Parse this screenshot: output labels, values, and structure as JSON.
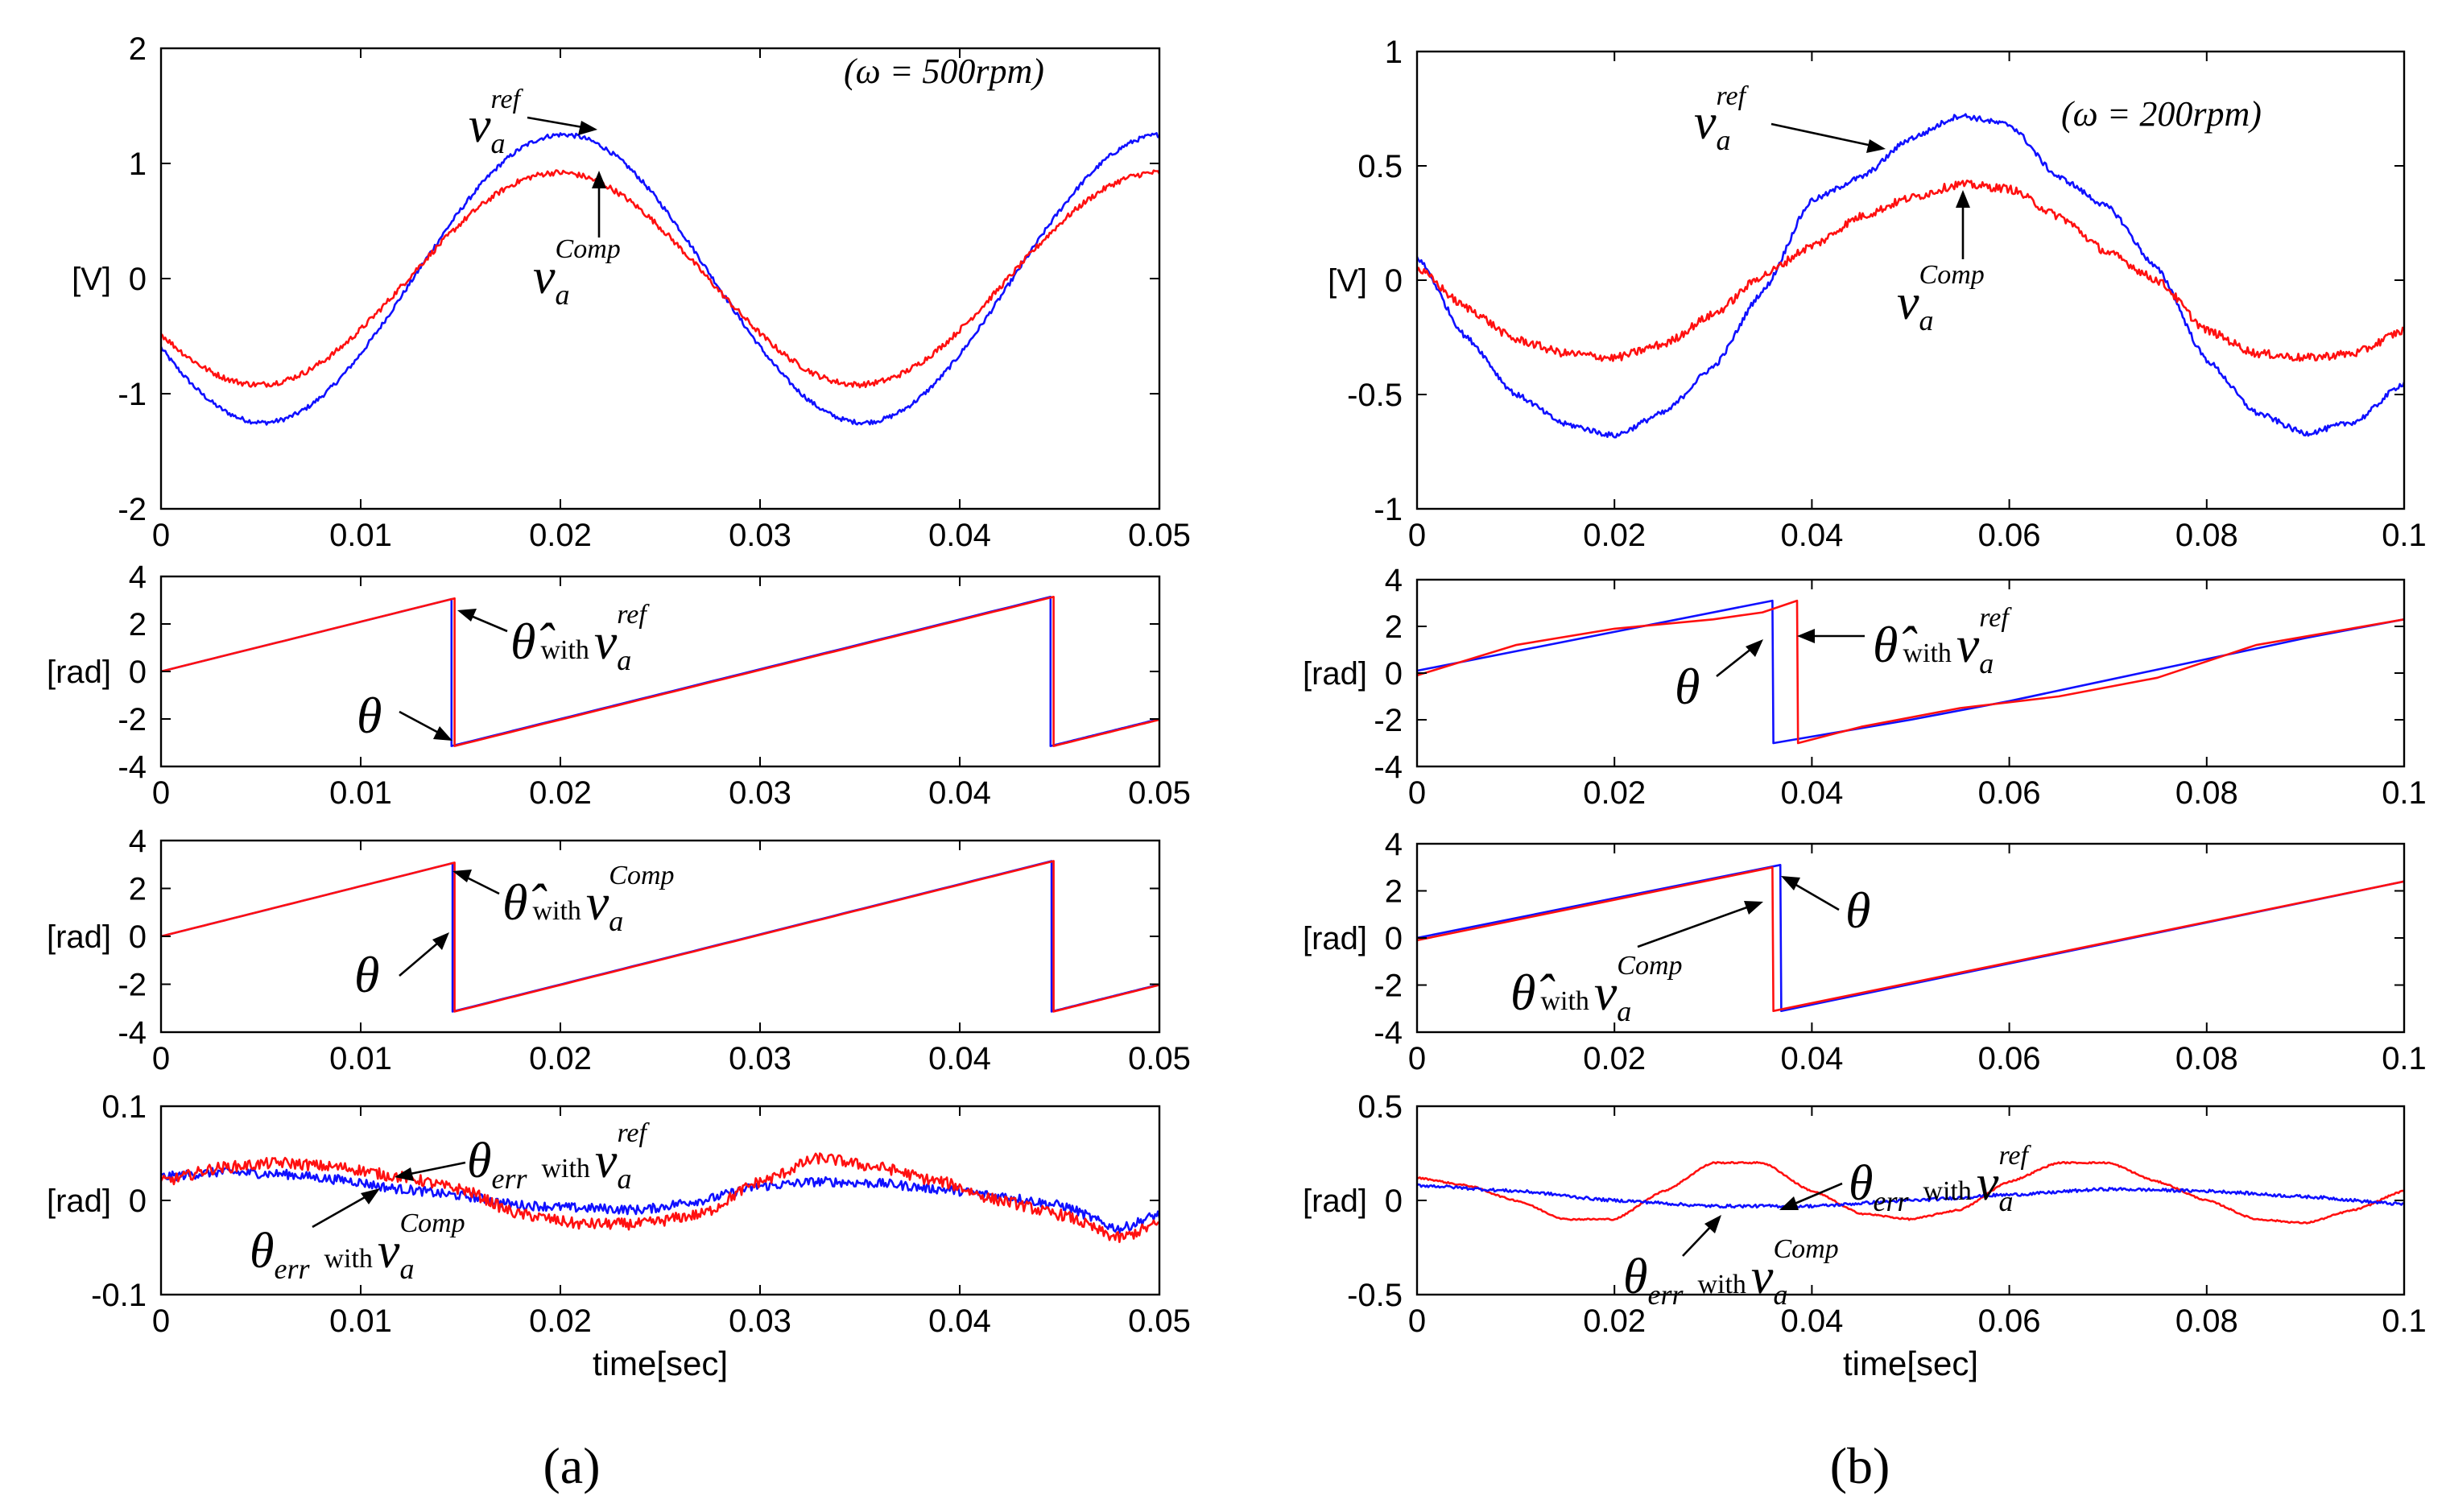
{
  "colors": {
    "reference": "#1010ff",
    "compensated": "#ff1010",
    "axis": "#000000"
  },
  "panel_labels": {
    "a": "(a)",
    "b": "(b)"
  },
  "chart_data": [
    {
      "id": "a1",
      "type": "line",
      "column": "a",
      "ylabel": "[V]",
      "xlabel": "",
      "xlim": [
        0,
        0.05
      ],
      "ylim": [
        -2,
        2
      ],
      "xticks": [
        "0",
        "0.01",
        "0.02",
        "0.03",
        "0.04",
        "0.05"
      ],
      "yticks": [
        "-2",
        "-1",
        "0",
        "1",
        "2"
      ],
      "annotation": "(ω = 500rpm)",
      "series": [
        {
          "name": "v_a^ref",
          "color": "#1010ff",
          "kind": "sine",
          "amp": 1.25,
          "freq": 33.3,
          "phase": 0.5,
          "offset": 0,
          "noise": 0.02
        },
        {
          "name": "v_a^Comp",
          "color": "#ff1010",
          "kind": "sine",
          "amp": 0.92,
          "freq": 33.3,
          "phase": 0.55,
          "offset": 0,
          "noise": 0.025
        }
      ],
      "labels": {
        "main": "v",
        "sub": "a",
        "sup_ref": "ref",
        "sup_comp": "Comp"
      }
    },
    {
      "id": "a2",
      "type": "line",
      "column": "a",
      "ylabel": "[rad]",
      "xlabel": "",
      "xlim": [
        0,
        0.05
      ],
      "ylim": [
        -4,
        4
      ],
      "xticks": [
        "0",
        "0.01",
        "0.02",
        "0.03",
        "0.04",
        "0.05"
      ],
      "yticks": [
        "-4",
        "-2",
        "0",
        "2",
        "4"
      ],
      "series": [
        {
          "name": "theta_hat with v_a^ref",
          "color": "#1010ff",
          "kind": "saw",
          "wraps": [
            0.01455,
            0.04455
          ],
          "slope": 209.4,
          "start": 0.0
        },
        {
          "name": "theta",
          "color": "#ff1010",
          "kind": "saw",
          "wraps": [
            0.0147,
            0.0447
          ],
          "slope": 209.4,
          "start": 0.0
        }
      ],
      "labels": {
        "theta_hat": "θ̂",
        "with": "with",
        "v": "v",
        "sub": "a",
        "sup": "ref",
        "theta": "θ"
      }
    },
    {
      "id": "a3",
      "type": "line",
      "column": "a",
      "ylabel": "[rad]",
      "xlabel": "",
      "xlim": [
        0,
        0.05
      ],
      "ylim": [
        -4,
        4
      ],
      "xticks": [
        "0",
        "0.01",
        "0.02",
        "0.03",
        "0.04",
        "0.05"
      ],
      "yticks": [
        "-4",
        "-2",
        "0",
        "2",
        "4"
      ],
      "series": [
        {
          "name": "theta_hat with v_a^Comp",
          "color": "#1010ff",
          "kind": "saw",
          "wraps": [
            0.0146,
            0.0446
          ],
          "slope": 209.4,
          "start": 0.0
        },
        {
          "name": "theta",
          "color": "#ff1010",
          "kind": "saw",
          "wraps": [
            0.0147,
            0.0447
          ],
          "slope": 209.4,
          "start": 0.0
        }
      ],
      "labels": {
        "theta_hat": "θ̂",
        "with": "with",
        "v": "v",
        "sub": "a",
        "sup": "Comp",
        "theta": "θ"
      }
    },
    {
      "id": "a4",
      "type": "line",
      "column": "a",
      "ylabel": "[rad]",
      "xlabel": "time[sec]",
      "xlim": [
        0,
        0.05
      ],
      "ylim": [
        -0.1,
        0.1
      ],
      "xticks": [
        "0",
        "0.01",
        "0.02",
        "0.03",
        "0.04",
        "0.05"
      ],
      "yticks": [
        "-0.1",
        "0",
        "0.1"
      ],
      "series": [
        {
          "name": "theta_err with v_a^Comp",
          "color": "#1010ff",
          "kind": "points",
          "noise": 0.005,
          "x": [
            0,
            0.003,
            0.006,
            0.009,
            0.012,
            0.015,
            0.018,
            0.021,
            0.024,
            0.027,
            0.03,
            0.033,
            0.036,
            0.039,
            0.042,
            0.045,
            0.048,
            0.05
          ],
          "y": [
            0.025,
            0.03,
            0.028,
            0.022,
            0.012,
            0.005,
            -0.005,
            -0.008,
            -0.01,
            0.0,
            0.015,
            0.02,
            0.018,
            0.012,
            0.005,
            -0.005,
            -0.03,
            -0.015
          ]
        },
        {
          "name": "theta_err with v_a^ref",
          "color": "#ff1010",
          "kind": "points",
          "noise": 0.006,
          "x": [
            0,
            0.003,
            0.006,
            0.009,
            0.012,
            0.015,
            0.018,
            0.021,
            0.024,
            0.027,
            0.03,
            0.033,
            0.036,
            0.039,
            0.042,
            0.045,
            0.048,
            0.05
          ],
          "y": [
            0.02,
            0.035,
            0.04,
            0.035,
            0.025,
            0.012,
            -0.015,
            -0.025,
            -0.025,
            -0.015,
            0.02,
            0.045,
            0.035,
            0.02,
            0.0,
            -0.015,
            -0.04,
            -0.025
          ]
        }
      ],
      "labels": {
        "theta": "θ",
        "err": "err",
        "with": "with",
        "v": "v",
        "sub": "a",
        "sup_ref": "ref",
        "sup_comp": "Comp"
      }
    },
    {
      "id": "b1",
      "type": "line",
      "column": "b",
      "ylabel": "[V]",
      "xlabel": "",
      "xlim": [
        0,
        0.1
      ],
      "ylim": [
        -1,
        1
      ],
      "xticks": [
        "0",
        "0.02",
        "0.04",
        "0.06",
        "0.08",
        "0.1"
      ],
      "yticks": [
        "-1",
        "-0.5",
        "0",
        "0.5",
        "1"
      ],
      "annotation": "(ω = 200rpm)",
      "series": [
        {
          "name": "v_a^ref",
          "color": "#1010ff",
          "kind": "points",
          "noise": 0.012,
          "x": [
            0,
            0.005,
            0.01,
            0.015,
            0.02,
            0.025,
            0.03,
            0.035,
            0.04,
            0.045,
            0.05,
            0.055,
            0.06,
            0.065,
            0.07,
            0.075,
            0.08,
            0.085,
            0.09,
            0.095,
            0.1
          ],
          "y": [
            0.1,
            -0.25,
            -0.5,
            -0.63,
            -0.68,
            -0.58,
            -0.38,
            -0.05,
            0.35,
            0.45,
            0.62,
            0.72,
            0.68,
            0.45,
            0.32,
            0.05,
            -0.35,
            -0.58,
            -0.67,
            -0.62,
            -0.45
          ]
        },
        {
          "name": "v_a^Comp",
          "color": "#ff1010",
          "kind": "points",
          "noise": 0.018,
          "x": [
            0,
            0.005,
            0.01,
            0.015,
            0.02,
            0.025,
            0.03,
            0.035,
            0.04,
            0.045,
            0.05,
            0.055,
            0.06,
            0.065,
            0.07,
            0.075,
            0.08,
            0.085,
            0.09,
            0.095,
            0.1
          ],
          "y": [
            0.05,
            -0.12,
            -0.26,
            -0.32,
            -0.34,
            -0.28,
            -0.15,
            0.02,
            0.15,
            0.28,
            0.36,
            0.42,
            0.4,
            0.28,
            0.12,
            0.0,
            -0.22,
            -0.32,
            -0.34,
            -0.32,
            -0.22
          ]
        }
      ],
      "labels": {
        "main": "v",
        "sub": "a",
        "sup_ref": "ref",
        "sup_comp": "Comp"
      }
    },
    {
      "id": "b2",
      "type": "line",
      "column": "b",
      "ylabel": "[rad]",
      "xlabel": "",
      "xlim": [
        0,
        0.1
      ],
      "ylim": [
        -4,
        4
      ],
      "xticks": [
        "0",
        "0.02",
        "0.04",
        "0.06",
        "0.08",
        "0.1"
      ],
      "yticks": [
        "-4",
        "-2",
        "0",
        "2",
        "4"
      ],
      "series": [
        {
          "name": "theta",
          "color": "#1010ff",
          "kind": "points",
          "noise": 0,
          "x": [
            0,
            0.036,
            0.0361,
            0.05,
            0.06,
            0.07,
            0.08,
            0.09,
            0.1
          ],
          "y": [
            0.1,
            3.1,
            -3.0,
            -2.0,
            -1.2,
            -0.3,
            0.6,
            1.5,
            2.3
          ]
        },
        {
          "name": "theta_hat with v_a^ref",
          "color": "#ff1010",
          "kind": "points",
          "noise": 0,
          "x": [
            0,
            0.01,
            0.02,
            0.03,
            0.035,
            0.0385,
            0.0386,
            0.045,
            0.055,
            0.065,
            0.075,
            0.085,
            0.1
          ],
          "y": [
            -0.1,
            1.2,
            1.9,
            2.3,
            2.6,
            3.1,
            -3.0,
            -2.3,
            -1.5,
            -1.0,
            -0.2,
            1.2,
            2.3
          ]
        }
      ],
      "labels": {
        "theta_hat": "θ̂",
        "with": "with",
        "v": "v",
        "sub": "a",
        "sup": "ref",
        "theta": "θ"
      }
    },
    {
      "id": "b3",
      "type": "line",
      "column": "b",
      "ylabel": "[rad]",
      "xlabel": "",
      "xlim": [
        0,
        0.1
      ],
      "ylim": [
        -4,
        4
      ],
      "xticks": [
        "0",
        "0.02",
        "0.04",
        "0.06",
        "0.08",
        "0.1"
      ],
      "yticks": [
        "-4",
        "-2",
        "0",
        "2",
        "4"
      ],
      "series": [
        {
          "name": "theta_hat with v_a^Comp",
          "color": "#1010ff",
          "kind": "points",
          "noise": 0,
          "x": [
            0,
            0.0368,
            0.0369,
            0.1
          ],
          "y": [
            0.0,
            3.1,
            -3.1,
            2.4
          ]
        },
        {
          "name": "theta",
          "color": "#ff1010",
          "kind": "points",
          "noise": 0,
          "x": [
            0,
            0.036,
            0.0361,
            0.1
          ],
          "y": [
            -0.1,
            3.0,
            -3.1,
            2.4
          ]
        }
      ],
      "labels": {
        "theta_hat": "θ̂",
        "with": "with",
        "v": "v",
        "sub": "a",
        "sup": "Comp",
        "theta": "θ"
      }
    },
    {
      "id": "b4",
      "type": "line",
      "column": "b",
      "ylabel": "[rad]",
      "xlabel": "time[sec]",
      "xlim": [
        0,
        0.1
      ],
      "ylim": [
        -0.5,
        0.5
      ],
      "xticks": [
        "0",
        "0.02",
        "0.04",
        "0.06",
        "0.08",
        "0.1"
      ],
      "yticks": [
        "-0.5",
        "0",
        "0.5"
      ],
      "series": [
        {
          "name": "theta_err with v_a^ref",
          "color": "#ff1010",
          "kind": "points",
          "noise": 0.004,
          "x": [
            0,
            0.005,
            0.01,
            0.015,
            0.02,
            0.025,
            0.03,
            0.035,
            0.04,
            0.045,
            0.05,
            0.055,
            0.06,
            0.065,
            0.07,
            0.075,
            0.08,
            0.085,
            0.09,
            0.095,
            0.1
          ],
          "y": [
            0.12,
            0.08,
            0.0,
            -0.1,
            -0.1,
            0.05,
            0.2,
            0.2,
            0.05,
            -0.07,
            -0.1,
            -0.05,
            0.1,
            0.2,
            0.2,
            0.1,
            0.0,
            -0.1,
            -0.12,
            -0.05,
            0.05
          ]
        },
        {
          "name": "theta_err with v_a^Comp",
          "color": "#1010ff",
          "kind": "points",
          "noise": 0.008,
          "x": [
            0,
            0.01,
            0.02,
            0.03,
            0.04,
            0.05,
            0.06,
            0.07,
            0.08,
            0.09,
            0.1
          ],
          "y": [
            0.08,
            0.05,
            0.0,
            -0.03,
            -0.03,
            0.0,
            0.03,
            0.06,
            0.05,
            0.02,
            -0.02
          ]
        }
      ],
      "labels": {
        "theta": "θ",
        "err": "err",
        "with": "with",
        "v": "v",
        "sub": "a",
        "sup_ref": "ref",
        "sup_comp": "Comp"
      }
    }
  ]
}
